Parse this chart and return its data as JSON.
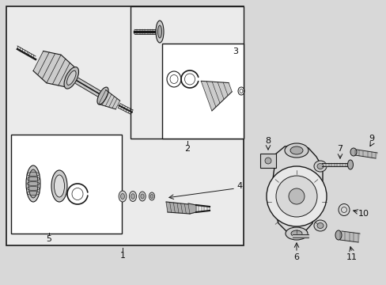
{
  "bg_color": "#d8d8d8",
  "white": "#ffffff",
  "light_gray": "#e8e8e8",
  "line_color": "#1a1a1a",
  "text_color": "#111111",
  "figsize": [
    4.89,
    3.6
  ],
  "dpi": 100,
  "axle_bg": "#ebebeb",
  "knuckle_fill": "#e0e0e0"
}
